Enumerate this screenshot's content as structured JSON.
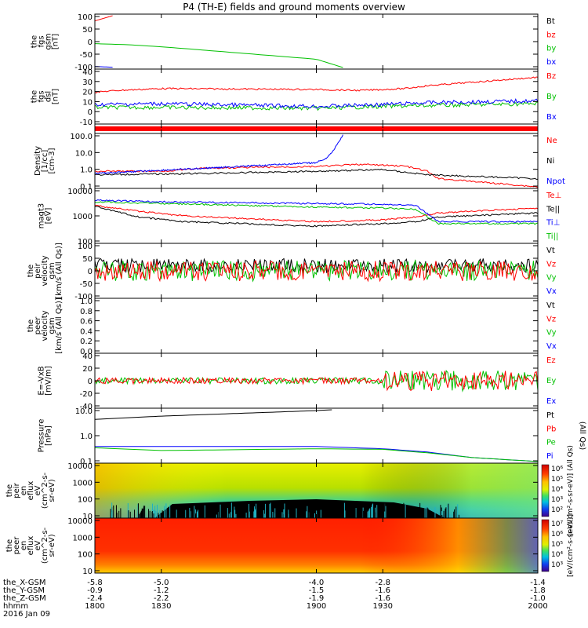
{
  "title": "P4 (TH-E) fields and ground moments overview",
  "colors": {
    "black": "#000000",
    "red": "#ff0000",
    "green": "#00c000",
    "blue": "#0000ff"
  },
  "chart_data": [
    {
      "type": "line",
      "panel": "fgs_gsm",
      "ylabel": [
        "the",
        "fgs",
        "gsm",
        "[nT]"
      ],
      "yticks": [
        "100",
        "50",
        "0",
        "-50",
        "-100"
      ],
      "ylim": [
        -100,
        100
      ],
      "legend": [
        "Bt",
        "bz",
        "by",
        "bx"
      ],
      "legend_colors": [
        "black",
        "red",
        "green",
        "blue"
      ],
      "series": [
        {
          "color": "red",
          "x": [
            1800,
            1808
          ],
          "y": [
            80,
            100
          ]
        },
        {
          "color": "green",
          "x": [
            1800,
            1815,
            1830,
            1845,
            1900,
            1912
          ],
          "y": [
            -8,
            -12,
            -20,
            -30,
            -68,
            -100
          ]
        },
        {
          "color": "blue",
          "x": [
            1800,
            1808
          ],
          "y": [
            -96,
            -99
          ]
        }
      ]
    },
    {
      "type": "line",
      "panel": "fgs_dsl",
      "ylabel": [
        "the",
        "fgs",
        "dsl",
        "[nT]"
      ],
      "yticks": [
        "40",
        "30",
        "20",
        "10",
        "0",
        "-10"
      ],
      "ylim": [
        -15,
        40
      ],
      "legend": [
        "Bz",
        "By",
        "Bx"
      ],
      "legend_colors": [
        "red",
        "green",
        "blue"
      ],
      "series": [
        {
          "color": "red",
          "x": [
            1800,
            1810,
            1830,
            1900,
            1920,
            1940,
            1950,
            2000
          ],
          "y": [
            17,
            19,
            21,
            20,
            19,
            21,
            24,
            33
          ]
        },
        {
          "color": "green",
          "x": [
            1800,
            1830,
            1900,
            1930,
            1950,
            2000
          ],
          "y": [
            1,
            1,
            0,
            2,
            3,
            5
          ]
        },
        {
          "color": "blue",
          "x": [
            1800,
            1830,
            1900,
            1930,
            1950,
            2000
          ],
          "y": [
            4,
            5,
            2,
            4,
            6,
            8
          ]
        }
      ]
    },
    {
      "type": "line",
      "panel": "density",
      "ylabel": [
        "Density",
        "[1/cc]",
        "[cm-3]"
      ],
      "yticks": [
        "100.0",
        "10.0",
        "1.0",
        "0.1"
      ],
      "ylim": [
        0.1,
        100
      ],
      "scale": "log",
      "legend": [
        "Ne",
        "Ni",
        "Npot"
      ],
      "legend_colors": [
        "red",
        "black",
        "blue"
      ],
      "series": [
        {
          "color": "red",
          "x": [
            1800,
            1830,
            1850,
            1900,
            1920,
            1940,
            1950,
            1955,
            2000
          ],
          "y": [
            0.8,
            0.8,
            1.2,
            1.5,
            2.0,
            1.6,
            0.8,
            0.3,
            0.1
          ]
        },
        {
          "color": "black",
          "x": [
            1800,
            1850,
            1900,
            1930,
            1950,
            2000
          ],
          "y": [
            0.5,
            0.6,
            0.8,
            1.0,
            0.5,
            0.3
          ]
        },
        {
          "color": "blue",
          "x": [
            1800,
            1850,
            1900,
            1905,
            1908,
            1912
          ],
          "y": [
            0.6,
            1.2,
            2.5,
            5,
            15,
            100
          ]
        }
      ]
    },
    {
      "type": "line",
      "panel": "temperature",
      "ylabel": [
        "magt3",
        "[eV]"
      ],
      "yticks": [
        "10000",
        "1000",
        "100"
      ],
      "ylim": [
        100,
        10000
      ],
      "scale": "log",
      "legend": [
        "Te⊥",
        "Te||",
        "Ti⊥",
        "Ti||"
      ],
      "legend_colors": [
        "red",
        "black",
        "blue",
        "green"
      ],
      "series": [
        {
          "color": "red",
          "x": [
            1800,
            1820,
            1840,
            1900,
            1930,
            1945,
            1955,
            2000
          ],
          "y": [
            2500,
            1500,
            1000,
            600,
            700,
            900,
            1300,
            2000
          ]
        },
        {
          "color": "black",
          "x": [
            1800,
            1820,
            1840,
            1900,
            1930,
            1945,
            1955,
            2000
          ],
          "y": [
            2300,
            900,
            600,
            400,
            500,
            600,
            900,
            1300
          ]
        },
        {
          "color": "blue",
          "x": [
            1800,
            1830,
            1900,
            1930,
            1945,
            1955,
            2000
          ],
          "y": [
            4000,
            3500,
            3000,
            2800,
            2500,
            600,
            600
          ]
        },
        {
          "color": "green",
          "x": [
            1800,
            1830,
            1900,
            1930,
            1945,
            1955,
            2000
          ],
          "y": [
            3500,
            3000,
            2200,
            2000,
            1800,
            500,
            500
          ]
        }
      ]
    },
    {
      "type": "line",
      "panel": "velocity_peir",
      "ylabel": [
        "the",
        "peir",
        "velocity",
        "gsm",
        "[km/s (All Qs)]"
      ],
      "yticks": [
        "100",
        "50",
        "0",
        "-50",
        "-100"
      ],
      "ylim": [
        -100,
        100
      ],
      "legend": [
        "Vt",
        "Vz",
        "Vy",
        "Vx"
      ],
      "legend_colors": [
        "black",
        "red",
        "green",
        "blue"
      ],
      "series": [
        {
          "color": "black",
          "x": [
            1800,
            2000
          ],
          "y": [
            20,
            20
          ]
        },
        {
          "color": "green",
          "x": [
            1800,
            2000
          ],
          "y": [
            0,
            0
          ]
        },
        {
          "color": "red",
          "x": [
            1800,
            2000
          ],
          "y": [
            0,
            0
          ]
        }
      ]
    },
    {
      "type": "line",
      "panel": "velocity_peer",
      "ylabel": [
        "the",
        "peer",
        "velocity",
        "gsm",
        "[km/s (All Qs)]"
      ],
      "yticks": [
        "1.0",
        "0.8",
        "0.6",
        "0.4",
        "0.2",
        "0.0"
      ],
      "ylim": [
        0,
        1
      ],
      "legend": [
        "Vt",
        "Vz",
        "Vy",
        "Vx"
      ],
      "legend_colors": [
        "black",
        "red",
        "green",
        "blue"
      ],
      "series": []
    },
    {
      "type": "line",
      "panel": "efield",
      "ylabel": [
        "E=-VxB",
        "[mV/m]"
      ],
      "yticks": [
        "40",
        "20",
        "0",
        "-20",
        "-40"
      ],
      "ylim": [
        -40,
        40
      ],
      "legend": [
        "Ez",
        "Ey",
        "Ex"
      ],
      "legend_colors": [
        "red",
        "green",
        "blue"
      ],
      "series": [
        {
          "color": "green",
          "x": [
            1800,
            2000
          ],
          "y": [
            0,
            0
          ]
        },
        {
          "color": "red",
          "x": [
            1800,
            2000
          ],
          "y": [
            0,
            0
          ]
        }
      ]
    },
    {
      "type": "line",
      "panel": "pressure",
      "ylabel": [
        "Pressure",
        "[nPa]"
      ],
      "yticks": [
        "10.0",
        "1.0",
        "0.1"
      ],
      "ylim": [
        0.03,
        20
      ],
      "scale": "log",
      "legend": [
        "Pt",
        "Pb",
        "Pe",
        "Pi"
      ],
      "legend_colors": [
        "black",
        "red",
        "green",
        "blue"
      ],
      "extra_label": "(All Qs)",
      "series": [
        {
          "color": "black",
          "x": [
            1800,
            1830,
            1900,
            1907
          ],
          "y": [
            6,
            9,
            18,
            20
          ]
        },
        {
          "color": "blue",
          "x": [
            1800,
            1830,
            1900,
            1930,
            1950,
            1970,
            2000
          ],
          "y": [
            0.2,
            0.2,
            0.2,
            0.15,
            0.1,
            0.05,
            0.03
          ]
        },
        {
          "color": "green",
          "x": [
            1800,
            1830,
            1900,
            1930,
            1950,
            1970,
            2000
          ],
          "y": [
            0.17,
            0.12,
            0.15,
            0.14,
            0.09,
            0.05,
            0.03
          ]
        }
      ]
    },
    {
      "type": "heatmap",
      "panel": "peir_eflux",
      "ylabel": [
        "the",
        "peir",
        "en",
        "eflux",
        "eV",
        "(cm^2-s-",
        "sr-eV)"
      ],
      "yticks": [
        "10000",
        "1000",
        "100",
        "10"
      ],
      "ylim": [
        10,
        20000
      ],
      "scale": "log",
      "colorbar_ticks": [
        "10^6",
        "10^5",
        "10^4",
        "10^3",
        "10^2"
      ],
      "colorbar_label": "[eV/(cm^2-s-sr-eV)] (All Qs)"
    },
    {
      "type": "heatmap",
      "panel": "peer_eflux",
      "ylabel": [
        "the",
        "peer",
        "en",
        "eflux",
        "eV",
        "(cm^2-s-",
        "sr-eV)"
      ],
      "yticks": [
        "10000",
        "1000",
        "100",
        "10"
      ],
      "ylim": [
        10,
        20000
      ],
      "scale": "log",
      "colorbar_ticks": [
        "10^7",
        "10^6",
        "10^5",
        "10^4",
        "10^3"
      ],
      "colorbar_label": "[eV/(cm^2-s-sr-eV)]"
    }
  ],
  "xaxis": {
    "rows": [
      {
        "label": "the_X-GSM",
        "values": [
          "-5.8",
          "-5.0",
          "-4.0",
          "-2.8",
          "-1.4"
        ]
      },
      {
        "label": "the_Y-GSM",
        "values": [
          "-0.9",
          "-1.2",
          "-1.5",
          "-1.6",
          "-1.8"
        ]
      },
      {
        "label": "the_Z-GSM",
        "values": [
          "-2.4",
          "-2.2",
          "-1.9",
          "-1.6",
          "-1.0"
        ]
      },
      {
        "label": "hhmm",
        "values": [
          "1800",
          "1830",
          "1900",
          "1930",
          "2000"
        ]
      }
    ],
    "date": "2016 Jan 09",
    "range": [
      1800,
      2000
    ]
  }
}
